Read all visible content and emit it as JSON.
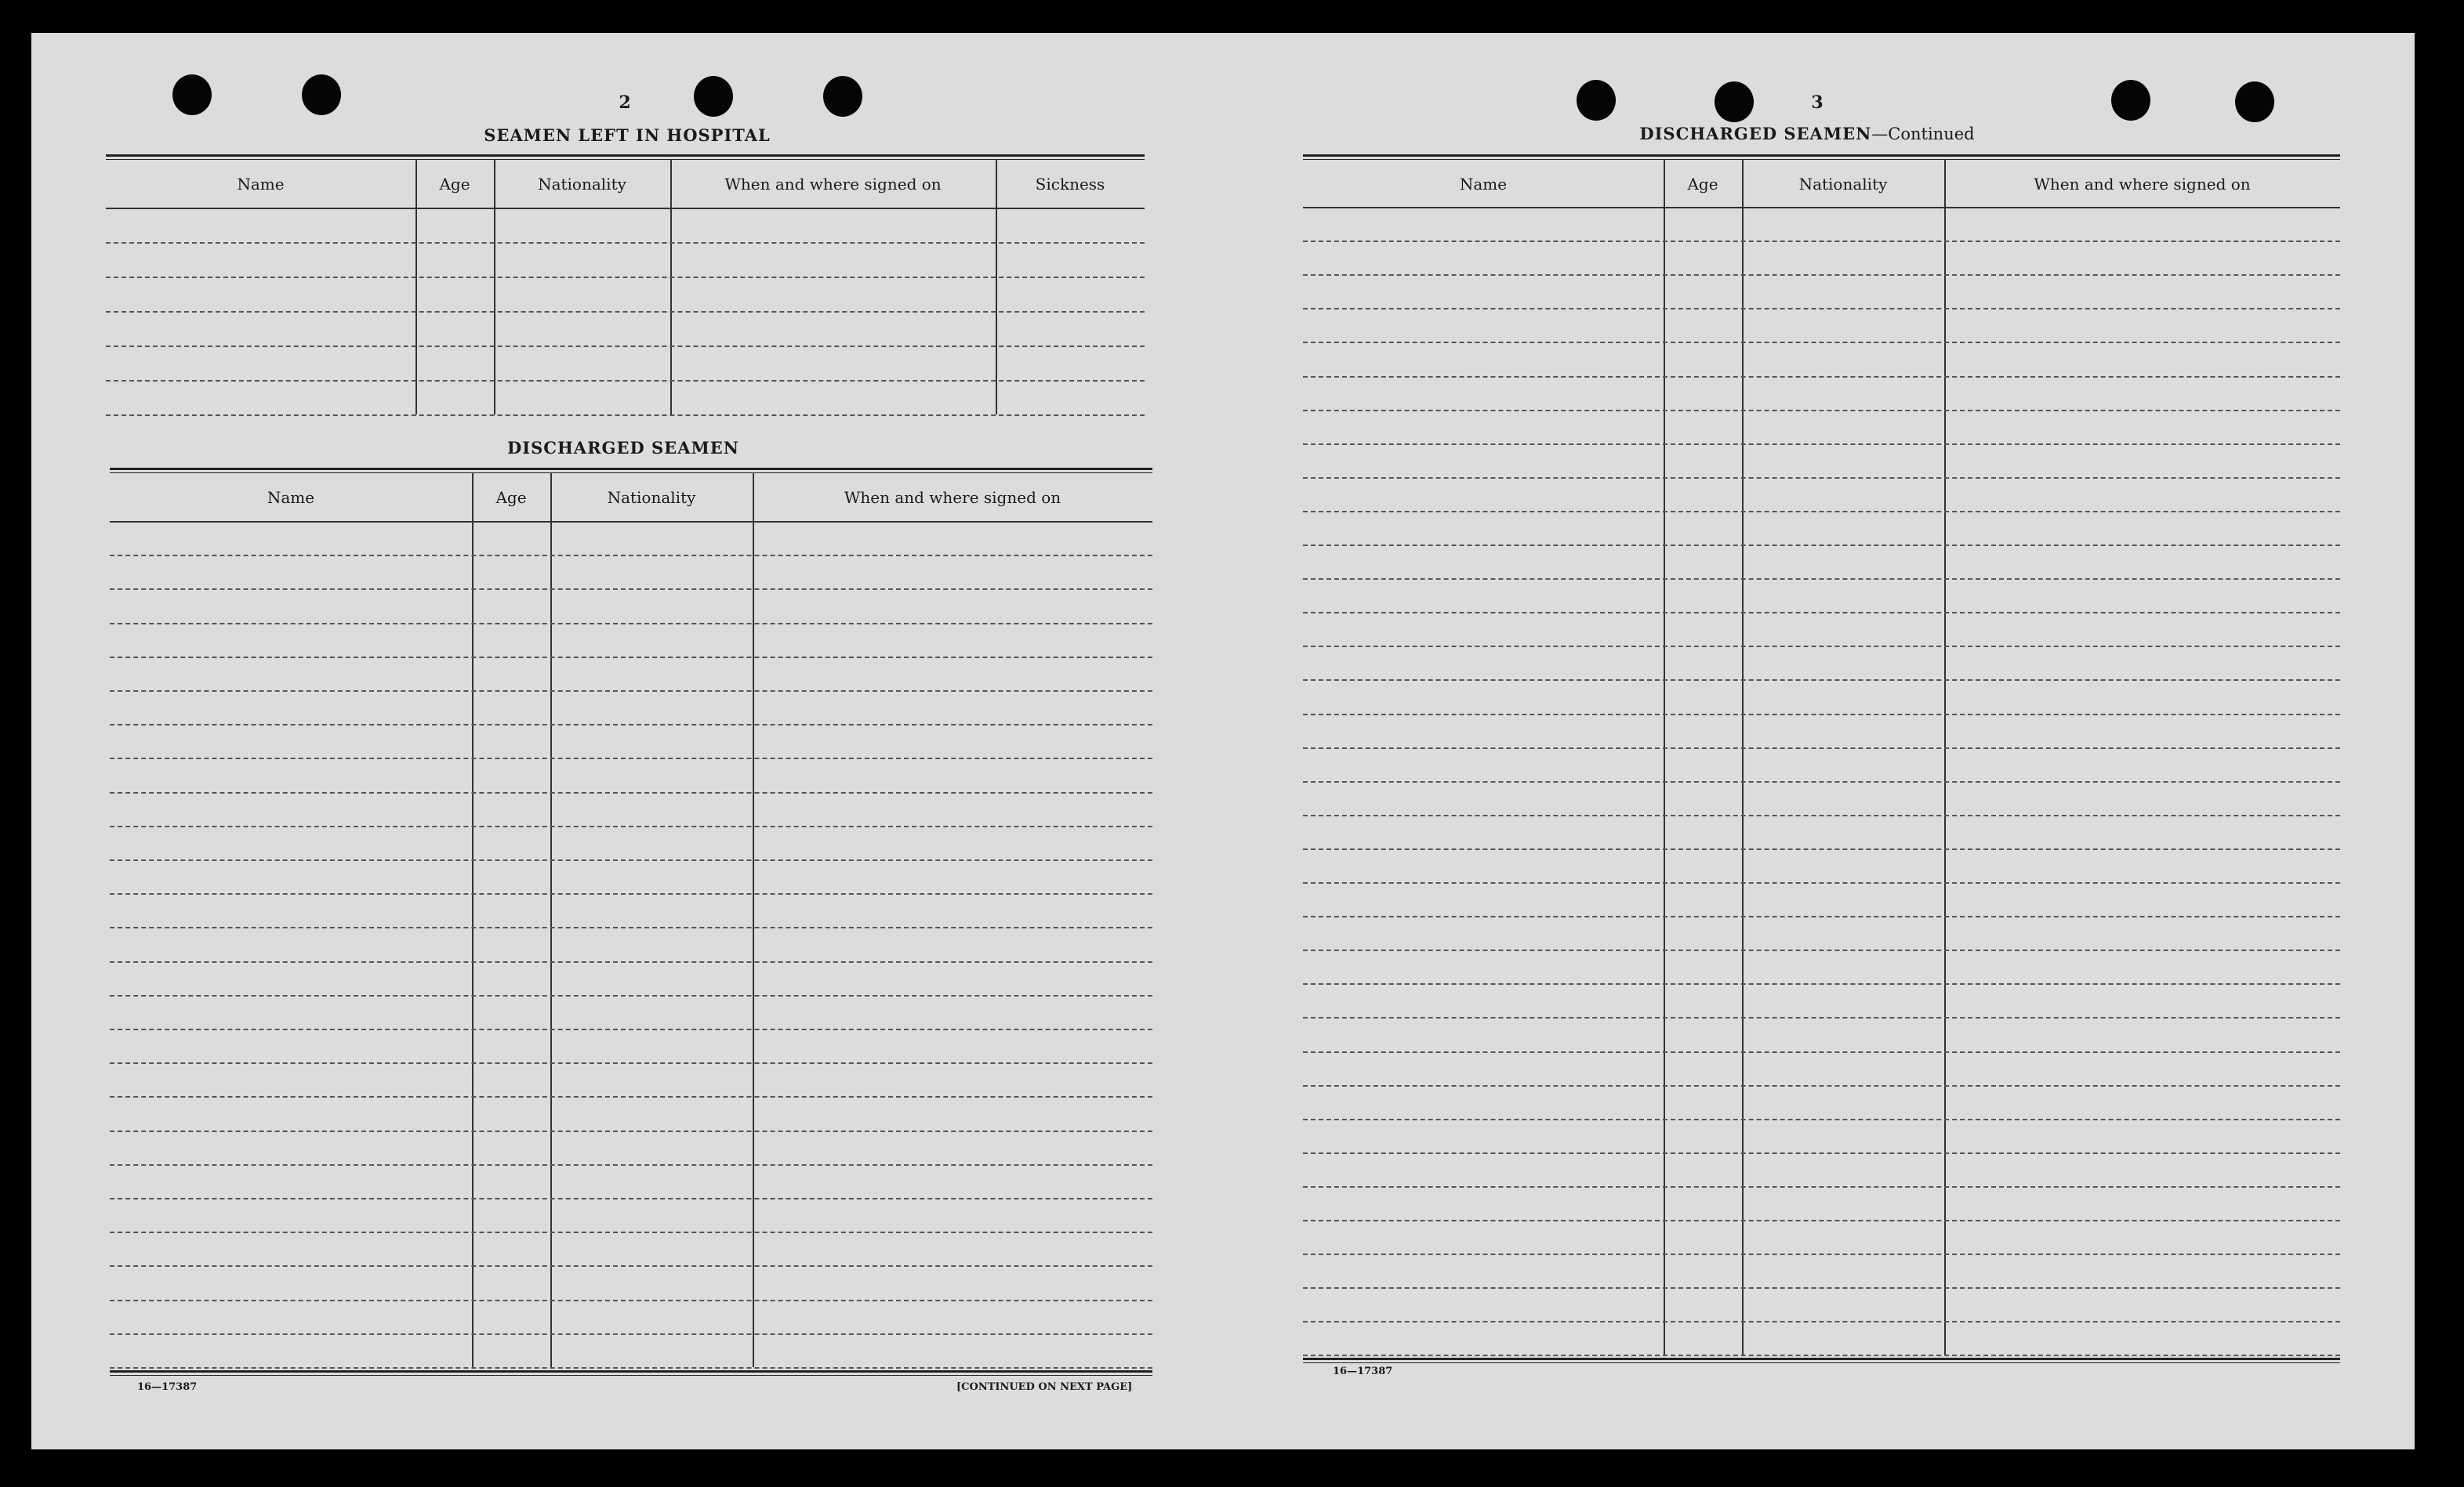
{
  "left_page": {
    "page_number": "2",
    "hospital_section": {
      "title": "SEAMEN LEFT IN HOSPITAL",
      "columns": [
        "Name",
        "Age",
        "Nationality",
        "When and where signed on",
        "Sickness"
      ]
    },
    "discharged_section": {
      "title": "DISCHARGED SEAMEN",
      "columns": [
        "Name",
        "Age",
        "Nationality",
        "When and where signed on"
      ]
    },
    "form_number": "16—17387",
    "continued_note": "[CONTINUED ON NEXT PAGE]"
  },
  "right_page": {
    "page_number": "3",
    "discharged_section": {
      "title": "DISCHARGED SEAMEN",
      "title_suffix": "—Continued",
      "columns": [
        "Name",
        "Age",
        "Nationality",
        "When and where signed on"
      ]
    },
    "form_number": "16—17387"
  },
  "colors": {
    "paper": "#dcdcdc",
    "background": "#000000",
    "ink": "#1a1a1a"
  }
}
